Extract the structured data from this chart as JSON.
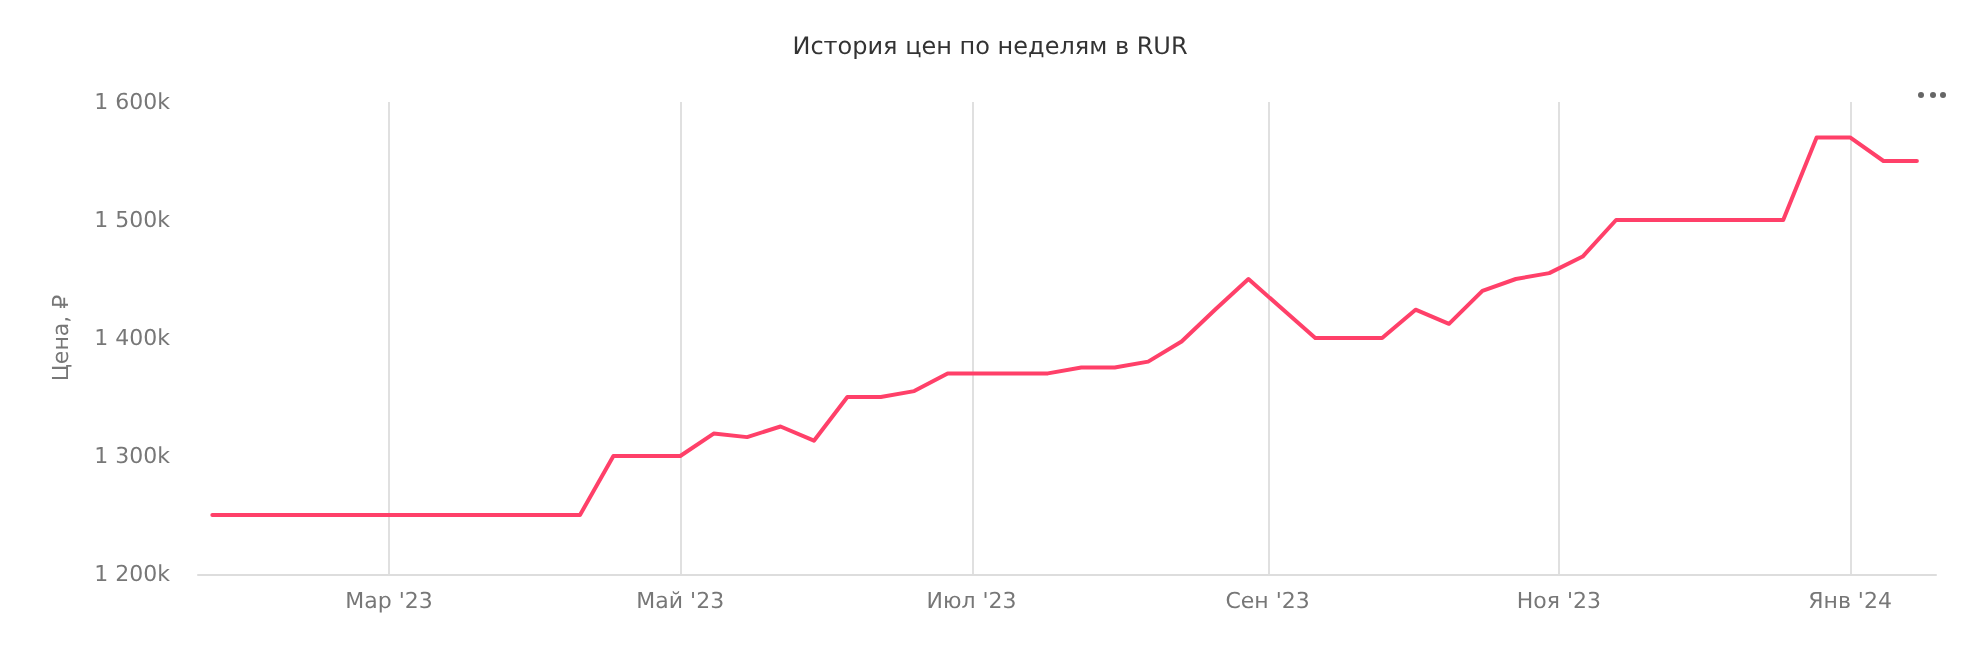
{
  "chart_data": {
    "type": "line",
    "title": "История цен по неделям в RUR",
    "ylabel": "Цена, ₽",
    "x": [
      "2023-01-23",
      "2023-01-30",
      "2023-02-06",
      "2023-02-13",
      "2023-02-20",
      "2023-02-27",
      "2023-03-06",
      "2023-03-13",
      "2023-03-20",
      "2023-03-27",
      "2023-04-03",
      "2023-04-10",
      "2023-04-17",
      "2023-04-24",
      "2023-05-01",
      "2023-05-08",
      "2023-05-15",
      "2023-05-22",
      "2023-05-29",
      "2023-06-05",
      "2023-06-12",
      "2023-06-19",
      "2023-06-26",
      "2023-07-03",
      "2023-07-10",
      "2023-07-17",
      "2023-07-24",
      "2023-07-31",
      "2023-08-07",
      "2023-08-14",
      "2023-08-21",
      "2023-08-28",
      "2023-09-04",
      "2023-09-11",
      "2023-09-18",
      "2023-09-25",
      "2023-10-02",
      "2023-10-09",
      "2023-10-16",
      "2023-10-23",
      "2023-10-30",
      "2023-11-06",
      "2023-11-13",
      "2023-11-20",
      "2023-11-27",
      "2023-12-04",
      "2023-12-11",
      "2023-12-18",
      "2023-12-25",
      "2024-01-01",
      "2024-01-08",
      "2024-01-15"
    ],
    "series": [
      {
        "color": "#ff4069",
        "values": [
          1250000,
          1250000,
          1250000,
          1250000,
          1250000,
          1250000,
          1250000,
          1250000,
          1250000,
          1250000,
          1250000,
          1250000,
          1300000,
          1300000,
          1300000,
          1319000,
          1316000,
          1325000,
          1313000,
          1350000,
          1350000,
          1355000,
          1370000,
          1370000,
          1370000,
          1370000,
          1375000,
          1375000,
          1380000,
          1397000,
          1424000,
          1450000,
          1425000,
          1400000,
          1400000,
          1400000,
          1424000,
          1412000,
          1440000,
          1450000,
          1455000,
          1469000,
          1500000,
          1500000,
          1500000,
          1500000,
          1500000,
          1500000,
          1570000,
          1570000,
          1550000,
          1550000
        ]
      }
    ],
    "xlim": [
      "2023-01-20",
      "2024-01-19"
    ],
    "xticks": [
      {
        "value": "2023-03-01",
        "label": "Мар '23"
      },
      {
        "value": "2023-05-01",
        "label": "Май '23"
      },
      {
        "value": "2023-07-01",
        "label": "Июл '23"
      },
      {
        "value": "2023-09-01",
        "label": "Сен '23"
      },
      {
        "value": "2023-11-01",
        "label": "Ноя '23"
      },
      {
        "value": "2024-01-01",
        "label": "Янв '24"
      }
    ],
    "ylim": [
      1200000,
      1600000
    ],
    "yticks": [
      {
        "value": 1200000,
        "label": "1 200k"
      },
      {
        "value": 1300000,
        "label": "1 300k"
      },
      {
        "value": 1400000,
        "label": "1 400k"
      },
      {
        "value": 1500000,
        "label": "1 500k"
      },
      {
        "value": 1600000,
        "label": "1 600k"
      }
    ],
    "grid": "x",
    "marker": "none",
    "line_style": "solid"
  }
}
